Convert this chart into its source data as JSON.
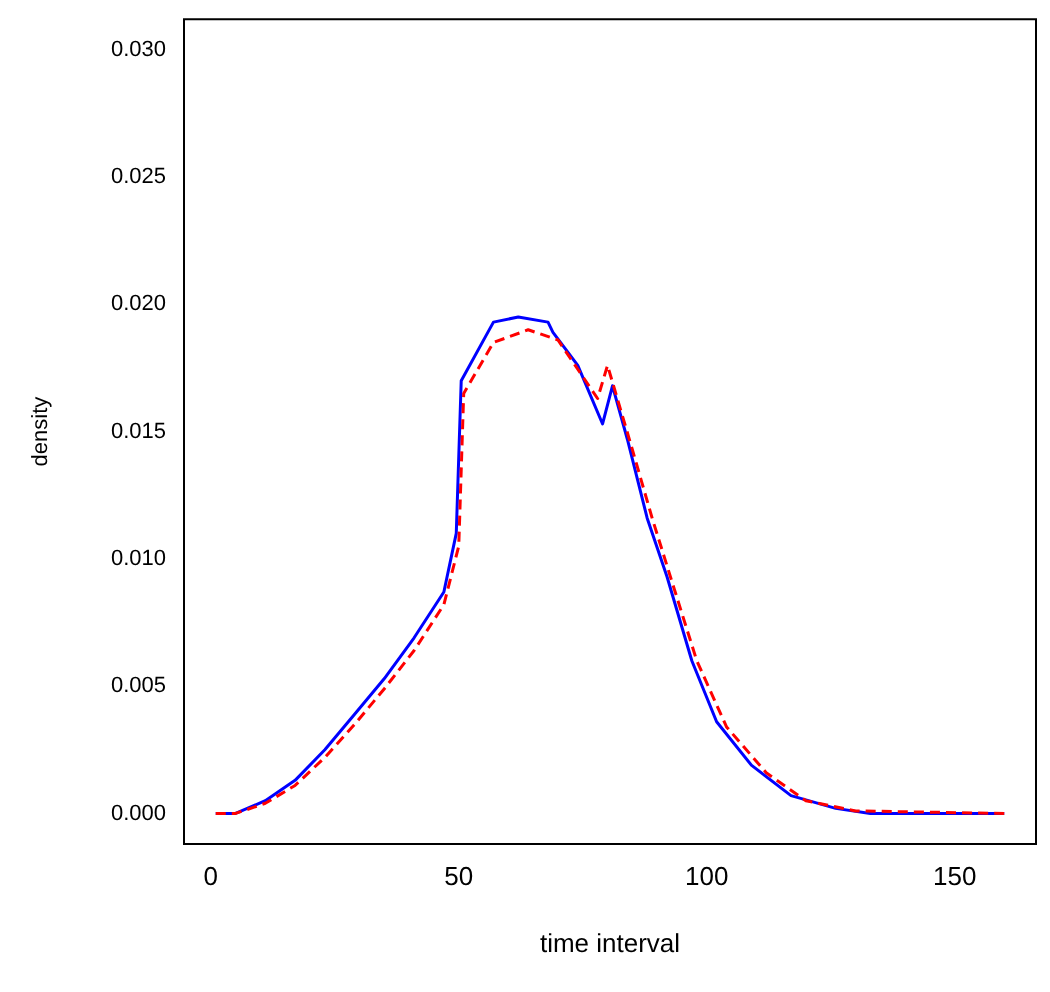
{
  "chart_data": {
    "type": "line",
    "xlabel": "time interval",
    "ylabel": "density",
    "xlim": [
      -5.4,
      166.4
    ],
    "ylim": [
      -0.0012,
      0.0312
    ],
    "xticks": [
      0,
      50,
      100,
      150
    ],
    "yticks": [
      {
        "value": 0,
        "label": "0.000"
      },
      {
        "value": 0.005,
        "label": "0.005"
      },
      {
        "value": 0.01,
        "label": "0.010"
      },
      {
        "value": 0.015,
        "label": "0.015"
      },
      {
        "value": 0.02,
        "label": "0.020"
      },
      {
        "value": 0.025,
        "label": "0.025"
      },
      {
        "value": 0.03,
        "label": "0.030"
      }
    ],
    "grid": false,
    "legend": false,
    "marker": "none",
    "series": [
      {
        "color": "#0000ff",
        "line_style": "solid",
        "x": [
          1,
          5,
          11,
          17,
          23,
          29,
          35,
          41,
          47,
          49.5,
          50.5,
          57,
          62,
          68,
          69,
          74,
          79,
          81,
          84,
          88,
          92,
          97,
          102,
          109,
          117,
          126,
          133,
          160
        ],
        "values": [
          0,
          0,
          0.0005,
          0.0013,
          0.0025,
          0.0039,
          0.0053,
          0.0069,
          0.0087,
          0.011,
          0.017,
          0.0193,
          0.0195,
          0.0193,
          0.0189,
          0.0176,
          0.0153,
          0.0168,
          0.0147,
          0.0116,
          0.0093,
          0.006,
          0.0036,
          0.0019,
          0.0007,
          0.0002,
          0,
          0
        ]
      },
      {
        "color": "#ff0000",
        "line_style": "dashed",
        "x": [
          1,
          5,
          11,
          17,
          23,
          29,
          35,
          41,
          47,
          50,
          51,
          57,
          64,
          70,
          78,
          80,
          85,
          89,
          93,
          98,
          104,
          112,
          120,
          130,
          160
        ],
        "values": [
          0,
          0,
          0.0004,
          0.0011,
          0.0022,
          0.0035,
          0.0049,
          0.0064,
          0.0082,
          0.0105,
          0.0165,
          0.0185,
          0.019,
          0.0186,
          0.0163,
          0.0176,
          0.0143,
          0.0116,
          0.0091,
          0.006,
          0.0034,
          0.0016,
          0.0005,
          0.0001,
          0
        ]
      }
    ]
  }
}
